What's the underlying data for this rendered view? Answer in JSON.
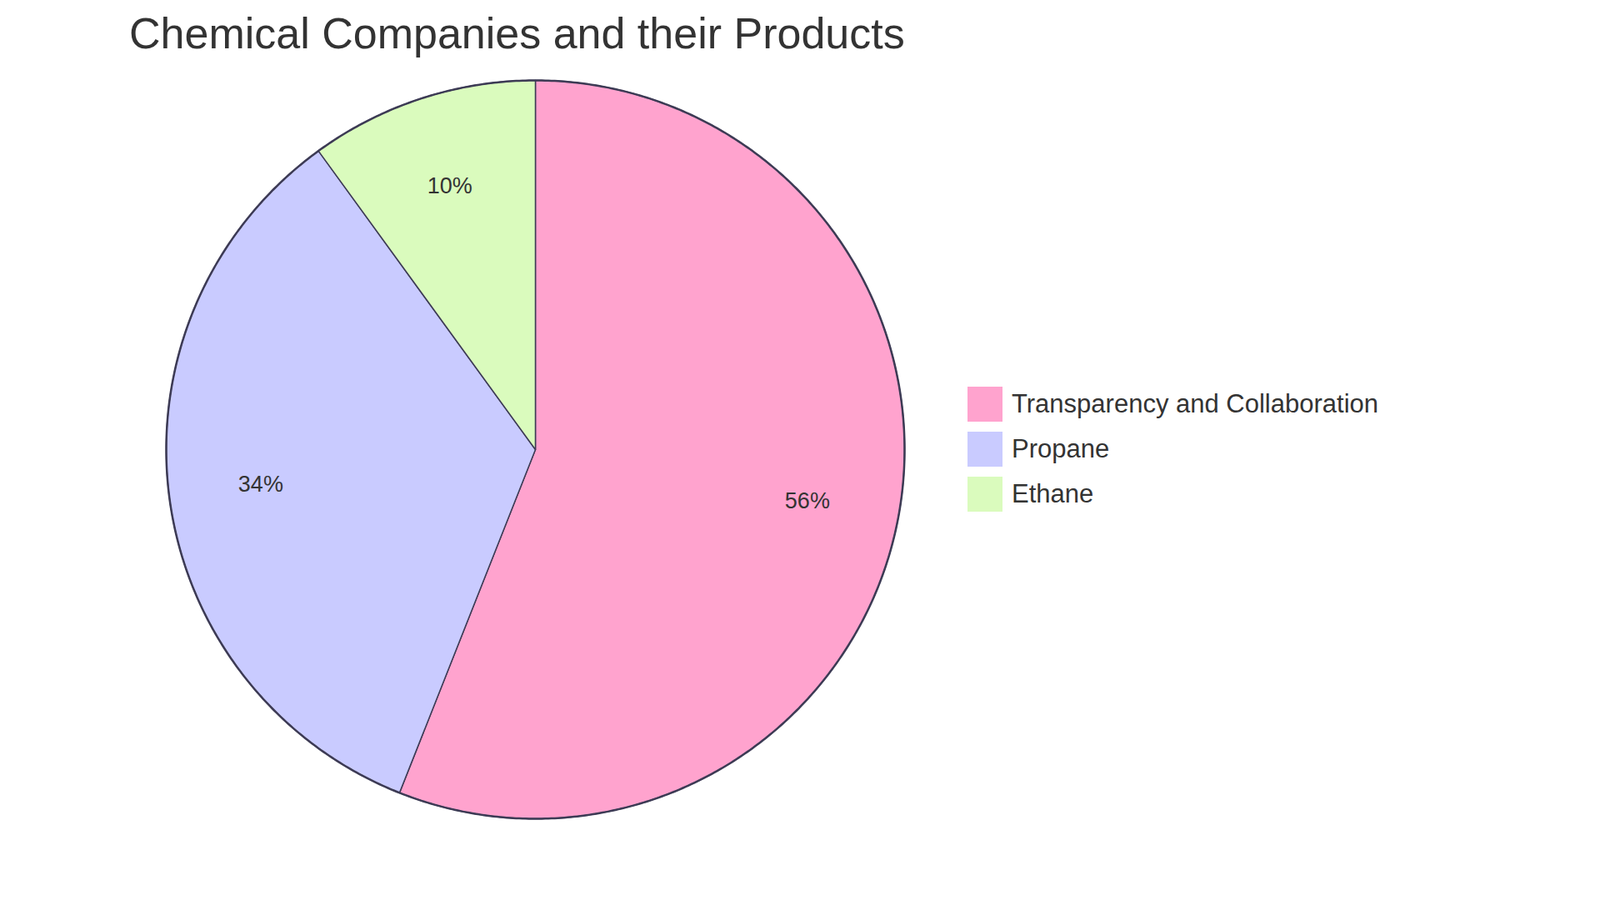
{
  "chart_data": {
    "type": "pie",
    "title": "Chemical Companies and their Products",
    "categories": [
      "Transparency and Collaboration",
      "Propane",
      "Ethane"
    ],
    "values": [
      56,
      34,
      10
    ],
    "value_labels": [
      "56%",
      "34%",
      "10%"
    ],
    "colors": [
      "#FFA3CE",
      "#C9CBFF",
      "#DAFBBD"
    ],
    "data_labels": true,
    "legend": "right"
  }
}
